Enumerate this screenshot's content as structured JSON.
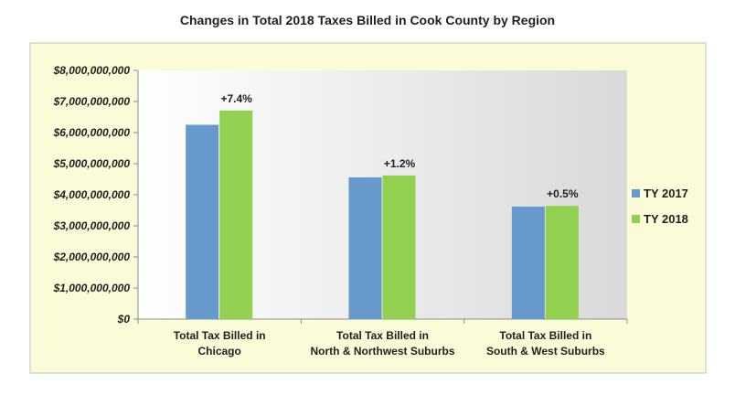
{
  "chart_data": {
    "type": "bar",
    "title": "Changes in Total 2018 Taxes Billed in Cook County by Region",
    "categories": [
      [
        "Total Tax Billed in",
        "Chicago"
      ],
      [
        "Total Tax Billed in",
        "North & Northwest Suburbs"
      ],
      [
        "Total Tax Billed in",
        "South & West Suburbs"
      ]
    ],
    "series": [
      {
        "name": "TY 2017",
        "color": "#6699cc",
        "values": [
          6250000000,
          4560000000,
          3620000000
        ]
      },
      {
        "name": "TY 2018",
        "color": "#92d050",
        "values": [
          6710000000,
          4620000000,
          3640000000
        ]
      }
    ],
    "annotations": [
      "+7.4%",
      "+1.2%",
      "+0.5%"
    ],
    "ylim": [
      0,
      8000000000
    ],
    "yticks": [
      "$0",
      "$1,000,000,000",
      "$2,000,000,000",
      "$3,000,000,000",
      "$4,000,000,000",
      "$5,000,000,000",
      "$6,000,000,000",
      "$7,000,000,000",
      "$8,000,000,000"
    ],
    "xlabel": "",
    "ylabel": "",
    "grid": false,
    "legend_position": "right",
    "background_color": "#fbfbd7",
    "plot_gradient": [
      "#ffffff",
      "#d9d9d9"
    ]
  }
}
